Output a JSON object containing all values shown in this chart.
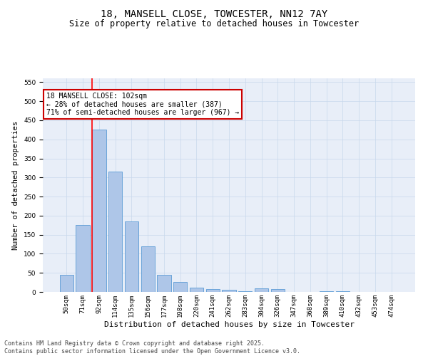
{
  "title": "18, MANSELL CLOSE, TOWCESTER, NN12 7AY",
  "subtitle": "Size of property relative to detached houses in Towcester",
  "xlabel": "Distribution of detached houses by size in Towcester",
  "ylabel": "Number of detached properties",
  "categories": [
    "50sqm",
    "71sqm",
    "92sqm",
    "114sqm",
    "135sqm",
    "156sqm",
    "177sqm",
    "198sqm",
    "220sqm",
    "241sqm",
    "262sqm",
    "283sqm",
    "304sqm",
    "326sqm",
    "347sqm",
    "368sqm",
    "389sqm",
    "410sqm",
    "432sqm",
    "453sqm",
    "474sqm"
  ],
  "values": [
    45,
    175,
    425,
    315,
    185,
    120,
    45,
    27,
    12,
    8,
    5,
    2,
    10,
    8,
    0,
    0,
    2,
    1,
    0,
    0,
    0
  ],
  "bar_color": "#aec6e8",
  "bar_edgecolor": "#5b9bd5",
  "red_line_x": 1.575,
  "annotation_text": "18 MANSELL CLOSE: 102sqm\n← 28% of detached houses are smaller (387)\n71% of semi-detached houses are larger (967) →",
  "annotation_box_color": "#ffffff",
  "annotation_box_edgecolor": "#cc0000",
  "ylim": [
    0,
    560
  ],
  "yticks": [
    0,
    50,
    100,
    150,
    200,
    250,
    300,
    350,
    400,
    450,
    500,
    550
  ],
  "background_color": "#e8eef8",
  "footer_text": "Contains HM Land Registry data © Crown copyright and database right 2025.\nContains public sector information licensed under the Open Government Licence v3.0.",
  "title_fontsize": 10,
  "subtitle_fontsize": 8.5,
  "xlabel_fontsize": 8,
  "ylabel_fontsize": 7.5,
  "tick_fontsize": 6.5,
  "footer_fontsize": 6,
  "annotation_fontsize": 7
}
